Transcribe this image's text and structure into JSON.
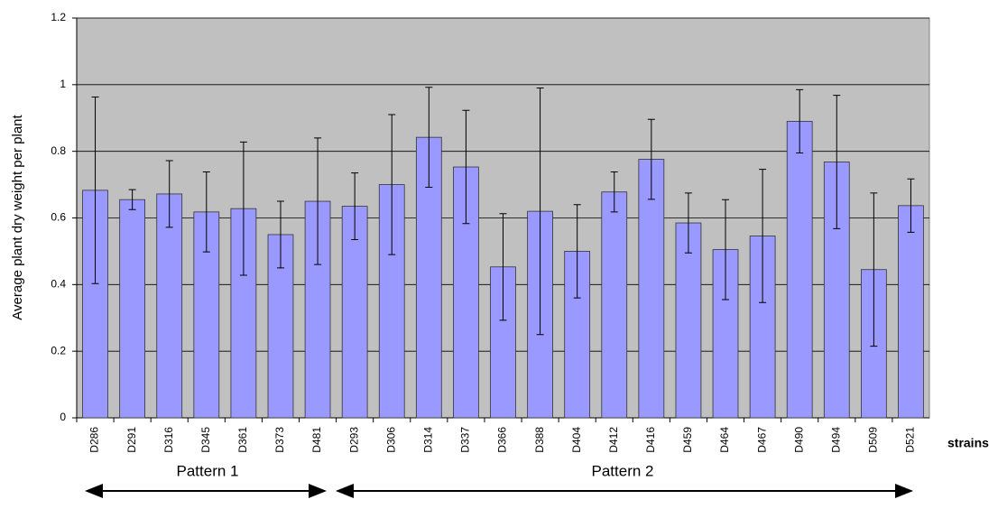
{
  "chart_data": {
    "type": "bar",
    "y_label": "Average plant dry weight per plant",
    "x_label": "strains",
    "categories": [
      "D286",
      "D291",
      "D316",
      "D345",
      "D361",
      "D373",
      "D481",
      "D293",
      "D306",
      "D314",
      "D337",
      "D366",
      "D388",
      "D404",
      "D412",
      "D416",
      "D459",
      "D464",
      "D467",
      "D490",
      "D494",
      "D509",
      "D521"
    ],
    "values": [
      0.683,
      0.655,
      0.672,
      0.618,
      0.628,
      0.55,
      0.65,
      0.635,
      0.7,
      0.842,
      0.753,
      0.453,
      0.62,
      0.5,
      0.678,
      0.776,
      0.585,
      0.505,
      0.546,
      0.89,
      0.768,
      0.445,
      0.637
    ],
    "errors": [
      0.28,
      0.03,
      0.1,
      0.12,
      0.2,
      0.1,
      0.19,
      0.1,
      0.21,
      0.15,
      0.17,
      0.16,
      0.37,
      0.14,
      0.06,
      0.12,
      0.09,
      0.15,
      0.2,
      0.095,
      0.2,
      0.23,
      0.08
    ],
    "color": "#9999ff",
    "ylim": [
      0,
      1.2
    ],
    "yticks": [
      0,
      0.2,
      0.4,
      0.6,
      0.8,
      1,
      1.2
    ],
    "grid": true,
    "annotations": [
      "Pattern 1",
      "Pattern 2"
    ]
  }
}
